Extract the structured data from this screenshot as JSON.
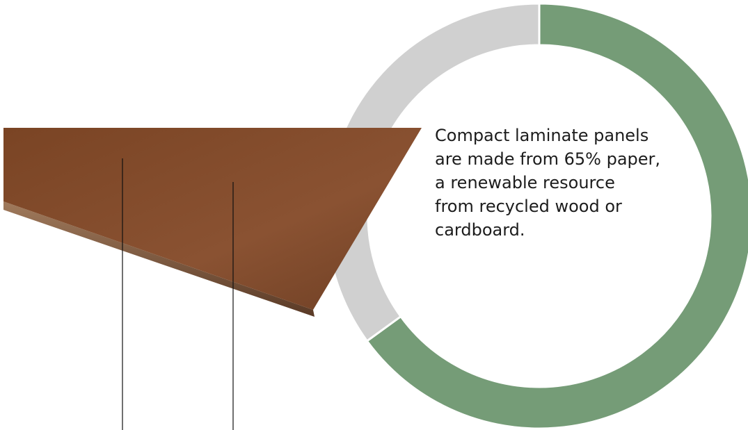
{
  "text_lines": [
    "Compact laminate panels",
    "are made from 65% paper,",
    "a renewable resource",
    "from recycled wood or",
    "cardboard."
  ],
  "chart_data": {
    "type": "pie",
    "values": [
      65,
      35
    ],
    "colors": [
      "#759c77",
      "#d0d0d0"
    ]
  }
}
